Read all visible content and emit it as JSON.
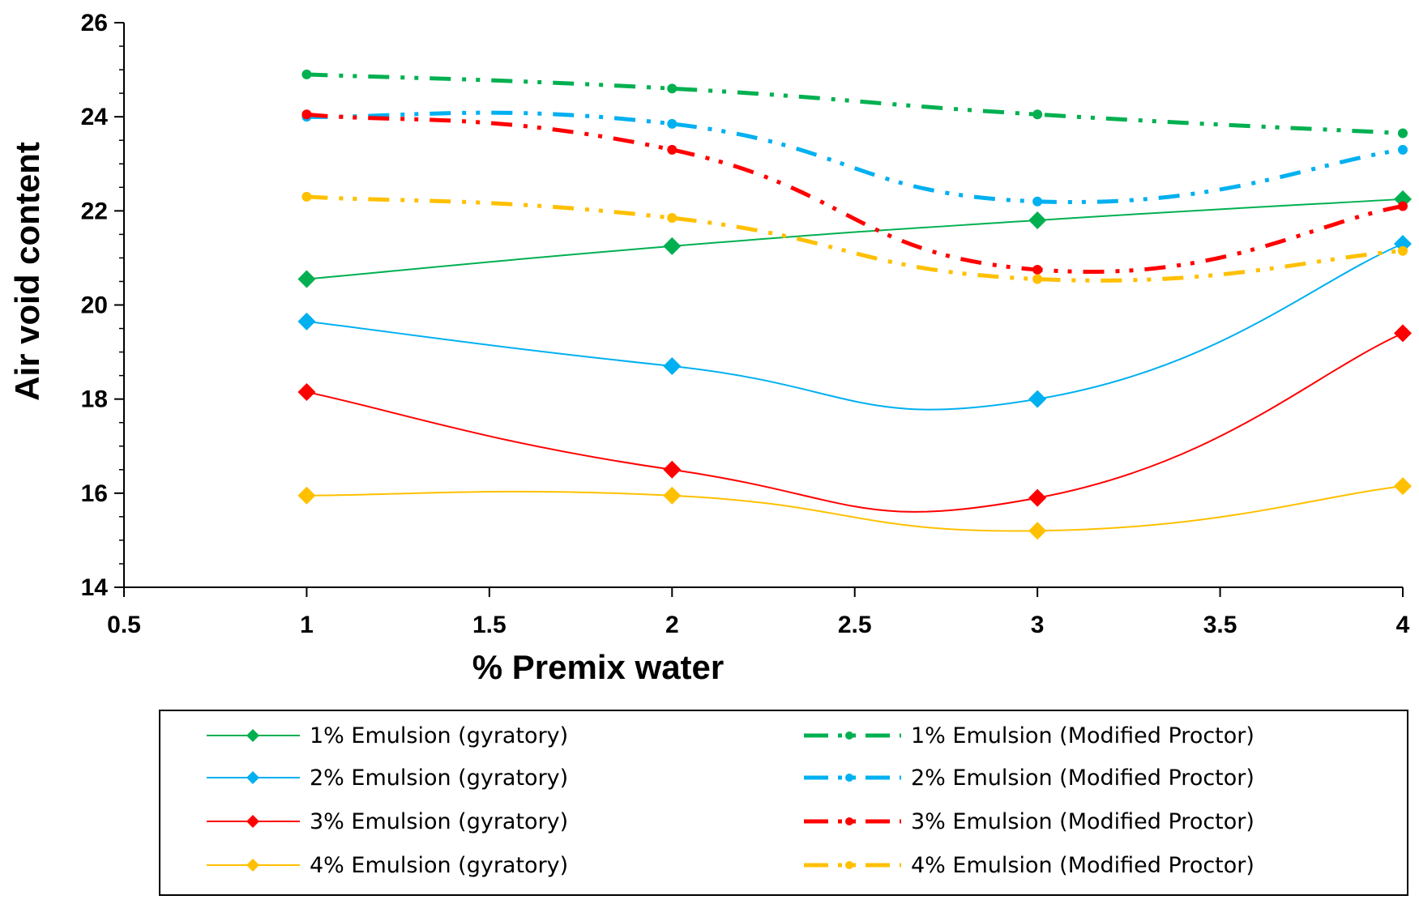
{
  "chart_data": {
    "type": "line",
    "title": "",
    "xlabel": "% Premix water",
    "ylabel": "Air void content",
    "xlim": [
      0.5,
      4
    ],
    "ylim": [
      14,
      26
    ],
    "xticks": [
      0.5,
      1,
      1.5,
      2,
      2.5,
      3,
      3.5,
      4
    ],
    "xtick_labels": [
      "0.5",
      "1",
      "1.5",
      "2",
      "2.5",
      "3",
      "3.5",
      "4"
    ],
    "yticks": [
      14,
      16,
      18,
      20,
      22,
      24,
      26
    ],
    "ytick_labels": [
      "14",
      "16",
      "18",
      "20",
      "22",
      "24",
      "26"
    ],
    "grid": false,
    "legend_position": "bottom",
    "x": [
      1,
      2,
      3,
      4
    ],
    "series": [
      {
        "name": "1% Emulsion (gyratory)",
        "values": [
          20.55,
          21.25,
          21.8,
          22.25
        ],
        "color": "#00b050",
        "style": "solid",
        "marker": "diamond"
      },
      {
        "name": "2% Emulsion (gyratory)",
        "values": [
          19.65,
          18.7,
          18.0,
          21.3
        ],
        "color": "#00b0f0",
        "style": "solid",
        "marker": "diamond"
      },
      {
        "name": "3% Emulsion (gyratory)",
        "values": [
          18.15,
          16.5,
          15.9,
          19.4
        ],
        "color": "#ff0000",
        "style": "solid",
        "marker": "diamond"
      },
      {
        "name": "4% Emulsion (gyratory)",
        "values": [
          15.95,
          15.95,
          15.2,
          16.15
        ],
        "color": "#ffc000",
        "style": "solid",
        "marker": "diamond"
      },
      {
        "name": "1% Emulsion (Modified Proctor)",
        "values": [
          24.9,
          24.6,
          24.05,
          23.65
        ],
        "color": "#00b050",
        "style": "dashdotdot",
        "marker": "circle"
      },
      {
        "name": "2% Emulsion (Modified Proctor)",
        "values": [
          24.0,
          23.85,
          22.2,
          23.3
        ],
        "color": "#00b0f0",
        "style": "dashdotdot",
        "marker": "circle"
      },
      {
        "name": "3% Emulsion (Modified Proctor)",
        "values": [
          24.05,
          23.3,
          20.75,
          22.1
        ],
        "color": "#ff0000",
        "style": "dashdotdot",
        "marker": "circle"
      },
      {
        "name": "4% Emulsion (Modified Proctor)",
        "values": [
          22.3,
          21.85,
          20.55,
          21.15
        ],
        "color": "#ffc000",
        "style": "dashdotdot",
        "marker": "circle"
      }
    ]
  }
}
